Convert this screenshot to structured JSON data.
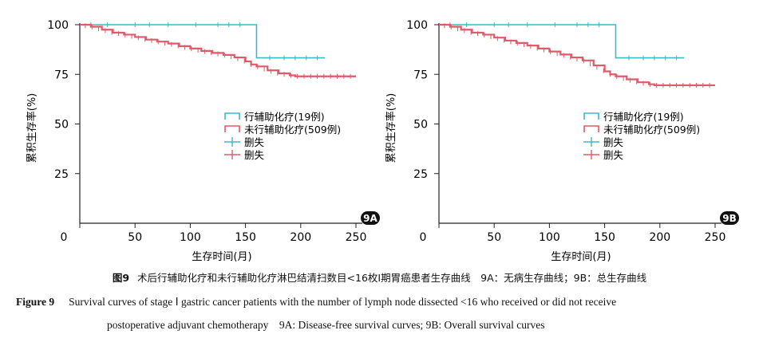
{
  "chart_data": [
    {
      "type": "line",
      "panel_label": "9A",
      "title": "",
      "xlabel": "生存时间(月)",
      "ylabel": "累积生存率(%)",
      "xlim": [
        0,
        250
      ],
      "ylim": [
        0,
        100
      ],
      "xticks": [
        "0",
        "50",
        "100",
        "150",
        "200",
        "250"
      ],
      "yticks": [
        "25",
        "50",
        "75",
        "100"
      ],
      "legend_position": "center-right",
      "series": [
        {
          "name": "行辅助化疗(19例)",
          "color": "#3fb8c8",
          "x": [
            0,
            160,
            160,
            222
          ],
          "y": [
            100,
            100,
            83.3,
            83.3
          ],
          "censored_x": [
            10,
            25,
            50,
            63,
            80,
            105,
            125,
            135,
            145,
            172,
            185,
            195,
            205,
            215
          ]
        },
        {
          "name": "未行辅助化疗(509例)",
          "color": "#e05a6a",
          "x": [
            0,
            10,
            20,
            30,
            40,
            50,
            60,
            70,
            80,
            90,
            100,
            110,
            120,
            130,
            140,
            150,
            155,
            160,
            170,
            180,
            190,
            195,
            250
          ],
          "y": [
            100,
            99,
            97.5,
            96,
            95,
            93.8,
            92.5,
            91.5,
            90.5,
            89.2,
            88,
            86.8,
            85.8,
            84.8,
            83.5,
            81.5,
            80,
            79,
            77,
            75.5,
            74.5,
            74,
            74
          ]
        }
      ],
      "legend": [
        "行辅助化疗(19例)",
        "未行辅助化疗(509例)",
        "删失",
        "删失"
      ]
    },
    {
      "type": "line",
      "panel_label": "9B",
      "title": "",
      "xlabel": "生存时间(月)",
      "ylabel": "累积生存率(%)",
      "xlim": [
        0,
        250
      ],
      "ylim": [
        0,
        100
      ],
      "xticks": [
        "0",
        "50",
        "100",
        "150",
        "200",
        "250"
      ],
      "yticks": [
        "25",
        "50",
        "75",
        "100"
      ],
      "legend_position": "center-right",
      "series": [
        {
          "name": "行辅助化疗(19例)",
          "color": "#3fb8c8",
          "x": [
            0,
            160,
            160,
            222
          ],
          "y": [
            100,
            100,
            83.3,
            83.3
          ],
          "censored_x": [
            10,
            25,
            50,
            63,
            80,
            105,
            125,
            135,
            145,
            172,
            185,
            195,
            205,
            215
          ]
        },
        {
          "name": "未行辅助化疗(509例)",
          "color": "#e05a6a",
          "x": [
            0,
            10,
            20,
            30,
            40,
            50,
            60,
            70,
            80,
            90,
            100,
            110,
            120,
            130,
            140,
            150,
            155,
            160,
            170,
            180,
            190,
            195,
            250
          ],
          "y": [
            100,
            99,
            97.5,
            96,
            95,
            93.5,
            92,
            90.8,
            89.5,
            88,
            86.5,
            85,
            83.5,
            82,
            79.5,
            76.5,
            75,
            74,
            72.5,
            71,
            70,
            69.5,
            69.5
          ]
        }
      ],
      "legend": [
        "行辅助化疗(19例)",
        "未行辅助化疗(509例)",
        "删失",
        "删失"
      ]
    }
  ],
  "caption": {
    "cn_label": "图9",
    "cn_text": "术后行辅助化疗和未行辅助化疗淋巴结清扫数目<16枚Ⅰ期胃癌患者生存曲线　9A：无病生存曲线；9B：总生存曲线",
    "en_label": "Figure 9",
    "en_line1": "Survival curves of stage Ⅰ gastric cancer patients with the number of lymph node dissected <16 who received or did not receive",
    "en_line2": "postoperative adjuvant chemotherapy　9A: Disease-free survival curves; 9B: Overall survival curves"
  }
}
